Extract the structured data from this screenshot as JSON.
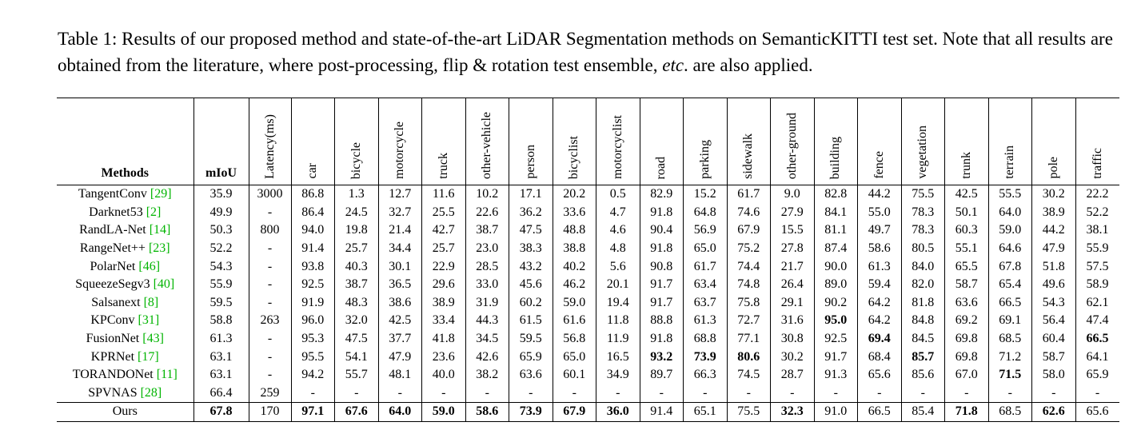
{
  "caption": {
    "main": "Table 1: Results of our proposed method and state-of-the-art LiDAR Segmentation methods on SemanticKITTI test set. Note that all results are obtained from the literature, where post-processing, flip & rotation test ensemble, ",
    "etc": "etc",
    "tail": ". are also applied."
  },
  "table": {
    "headers": {
      "methods": "Methods",
      "miou": "mIoU",
      "latency": "Latency(ms)",
      "classes": [
        "car",
        "bicycle",
        "motorcycle",
        "truck",
        "other-vehicle",
        "person",
        "bicyclist",
        "motorcyclist",
        "road",
        "parking",
        "sidewalk",
        "other-ground",
        "building",
        "fence",
        "vegetation",
        "trunk",
        "terrain",
        "pole",
        "traffic"
      ]
    },
    "rows": [
      {
        "name": "TangentConv ",
        "ref": "[29]",
        "miou": "35.9",
        "latency": "3000",
        "vals": [
          "86.8",
          "1.3",
          "12.7",
          "11.6",
          "10.2",
          "17.1",
          "20.2",
          "0.5",
          "82.9",
          "15.2",
          "61.7",
          "9.0",
          "82.8",
          "44.2",
          "75.5",
          "42.5",
          "55.5",
          "30.2",
          "22.2"
        ],
        "bold": []
      },
      {
        "name": "Darknet53 ",
        "ref": "[2]",
        "miou": "49.9",
        "latency": "-",
        "vals": [
          "86.4",
          "24.5",
          "32.7",
          "25.5",
          "22.6",
          "36.2",
          "33.6",
          "4.7",
          "91.8",
          "64.8",
          "74.6",
          "27.9",
          "84.1",
          "55.0",
          "78.3",
          "50.1",
          "64.0",
          "38.9",
          "52.2"
        ],
        "bold": []
      },
      {
        "name": "RandLA-Net ",
        "ref": "[14]",
        "miou": "50.3",
        "latency": "800",
        "vals": [
          "94.0",
          "19.8",
          "21.4",
          "42.7",
          "38.7",
          "47.5",
          "48.8",
          "4.6",
          "90.4",
          "56.9",
          "67.9",
          "15.5",
          "81.1",
          "49.7",
          "78.3",
          "60.3",
          "59.0",
          "44.2",
          "38.1"
        ],
        "bold": []
      },
      {
        "name": "RangeNet++ ",
        "ref": "[23]",
        "miou": "52.2",
        "latency": "-",
        "vals": [
          "91.4",
          "25.7",
          "34.4",
          "25.7",
          "23.0",
          "38.3",
          "38.8",
          "4.8",
          "91.8",
          "65.0",
          "75.2",
          "27.8",
          "87.4",
          "58.6",
          "80.5",
          "55.1",
          "64.6",
          "47.9",
          "55.9"
        ],
        "bold": []
      },
      {
        "name": "PolarNet ",
        "ref": "[46]",
        "miou": "54.3",
        "latency": "-",
        "vals": [
          "93.8",
          "40.3",
          "30.1",
          "22.9",
          "28.5",
          "43.2",
          "40.2",
          "5.6",
          "90.8",
          "61.7",
          "74.4",
          "21.7",
          "90.0",
          "61.3",
          "84.0",
          "65.5",
          "67.8",
          "51.8",
          "57.5"
        ],
        "bold": []
      },
      {
        "name": "SqueezeSegv3 ",
        "ref": "[40]",
        "miou": "55.9",
        "latency": "-",
        "vals": [
          "92.5",
          "38.7",
          "36.5",
          "29.6",
          "33.0",
          "45.6",
          "46.2",
          "20.1",
          "91.7",
          "63.4",
          "74.8",
          "26.4",
          "89.0",
          "59.4",
          "82.0",
          "58.7",
          "65.4",
          "49.6",
          "58.9"
        ],
        "bold": []
      },
      {
        "name": "Salsanext ",
        "ref": "[8]",
        "miou": "59.5",
        "latency": "-",
        "vals": [
          "91.9",
          "48.3",
          "38.6",
          "38.9",
          "31.9",
          "60.2",
          "59.0",
          "19.4",
          "91.7",
          "63.7",
          "75.8",
          "29.1",
          "90.2",
          "64.2",
          "81.8",
          "63.6",
          "66.5",
          "54.3",
          "62.1"
        ],
        "bold": []
      },
      {
        "name": "KPConv ",
        "ref": "[31]",
        "miou": "58.8",
        "latency": "263",
        "vals": [
          "96.0",
          "32.0",
          "42.5",
          "33.4",
          "44.3",
          "61.5",
          "61.6",
          "11.8",
          "88.8",
          "61.3",
          "72.7",
          "31.6",
          "95.0",
          "64.2",
          "84.8",
          "69.2",
          "69.1",
          "56.4",
          "47.4"
        ],
        "bold": [
          12
        ]
      },
      {
        "name": "FusionNet ",
        "ref": "[43]",
        "miou": "61.3",
        "latency": "-",
        "vals": [
          "95.3",
          "47.5",
          "37.7",
          "41.8",
          "34.5",
          "59.5",
          "56.8",
          "11.9",
          "91.8",
          "68.8",
          "77.1",
          "30.8",
          "92.5",
          "69.4",
          "84.5",
          "69.8",
          "68.5",
          "60.4",
          "66.5"
        ],
        "bold": [
          13,
          18
        ]
      },
      {
        "name": "KPRNet ",
        "ref": "[17]",
        "miou": "63.1",
        "latency": "-",
        "vals": [
          "95.5",
          "54.1",
          "47.9",
          "23.6",
          "42.6",
          "65.9",
          "65.0",
          "16.5",
          "93.2",
          "73.9",
          "80.6",
          "30.2",
          "91.7",
          "68.4",
          "85.7",
          "69.8",
          "71.2",
          "58.7",
          "64.1"
        ],
        "bold": [
          8,
          9,
          10,
          14
        ]
      },
      {
        "name": "TORANDONet ",
        "ref": "[11]",
        "miou": "63.1",
        "latency": "-",
        "vals": [
          "94.2",
          "55.7",
          "48.1",
          "40.0",
          "38.2",
          "63.6",
          "60.1",
          "34.9",
          "89.7",
          "66.3",
          "74.5",
          "28.7",
          "91.3",
          "65.6",
          "85.6",
          "67.0",
          "71.5",
          "58.0",
          "65.9"
        ],
        "bold": [
          16
        ]
      },
      {
        "name": "SPVNAS ",
        "ref": "[28]",
        "miou": "66.4",
        "latency": "259",
        "vals": [
          "-",
          "-",
          "-",
          "-",
          "-",
          "-",
          "-",
          "-",
          "-",
          "-",
          "-",
          "-",
          "-",
          "-",
          "-",
          "-",
          "-",
          "-",
          "-"
        ],
        "bold": []
      },
      {
        "name": "Ours",
        "ref": "",
        "miou": "67.8",
        "latency": "170",
        "vals": [
          "97.1",
          "67.6",
          "64.0",
          "59.0",
          "58.6",
          "73.9",
          "67.9",
          "36.0",
          "91.4",
          "65.1",
          "75.5",
          "32.3",
          "91.0",
          "66.5",
          "85.4",
          "71.8",
          "68.5",
          "62.6",
          "65.6"
        ],
        "bold": [
          0,
          1,
          2,
          3,
          4,
          5,
          6,
          7,
          11,
          15,
          17
        ],
        "miou_bold": true,
        "ours": true
      }
    ]
  }
}
